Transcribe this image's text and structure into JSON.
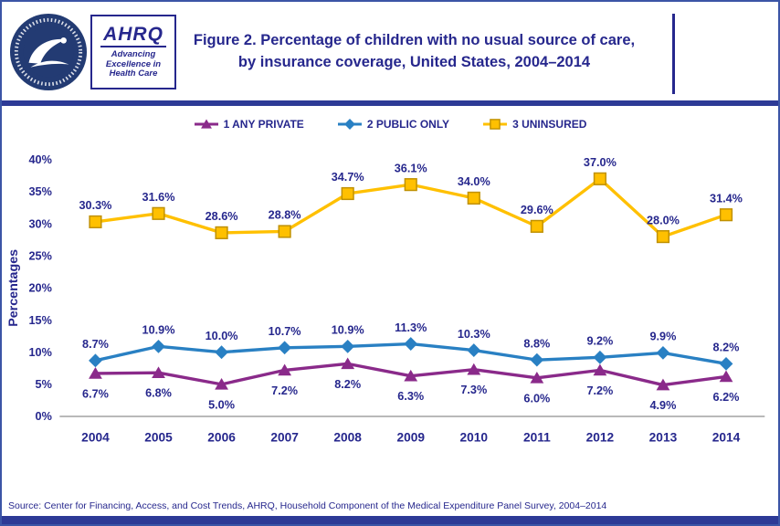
{
  "colors": {
    "navy_text": "#26278D",
    "border_blue": "#3B55A6",
    "rule_blue": "#2D3A96",
    "seal_navy": "#233B73",
    "axis_gray": "#8F8F8F"
  },
  "header": {
    "title_line1": "Figure 2. Percentage of children with no usual source of care,",
    "title_line2": "by insurance coverage, United States, 2004–2014",
    "hhs_seal_alt": "U.S. Department of Health & Human Services seal",
    "ahrq": {
      "name": "AHRQ",
      "tagline1": "Advancing",
      "tagline2": "Excellence in",
      "tagline3": "Health Care"
    }
  },
  "chart_data": {
    "type": "line",
    "categories": [
      "2004",
      "2005",
      "2006",
      "2007",
      "2008",
      "2009",
      "2010",
      "2011",
      "2012",
      "2013",
      "2014"
    ],
    "series": [
      {
        "name": "1 ANY PRIVATE",
        "marker": "triangle",
        "color": "#8A2A8A",
        "label_position": "below",
        "values": [
          6.7,
          6.8,
          5.0,
          7.2,
          8.2,
          6.3,
          7.3,
          6.0,
          7.2,
          4.9,
          6.2
        ]
      },
      {
        "name": "2 PUBLIC ONLY",
        "marker": "diamond",
        "color": "#2980C3",
        "label_position": "above",
        "values": [
          8.7,
          10.9,
          10.0,
          10.7,
          10.9,
          11.3,
          10.3,
          8.8,
          9.2,
          9.9,
          8.2
        ]
      },
      {
        "name": "3 UNINSURED",
        "marker": "square",
        "color": "#FFC000",
        "marker_border": "#BF9000",
        "label_position": "above",
        "values": [
          30.3,
          31.6,
          28.6,
          28.8,
          34.7,
          36.1,
          34.0,
          29.6,
          37.0,
          28.0,
          31.4
        ]
      }
    ],
    "ylabel": "Percentages",
    "ylim": [
      0,
      40
    ],
    "ytick_step": 5,
    "ytick_suffix": "%",
    "grid": false,
    "legend_position": "top"
  },
  "footer": {
    "source": "Source: Center for Financing, Access, and Cost Trends, AHRQ, Household Component of the Medical Expenditure Panel Survey, 2004–2014"
  }
}
